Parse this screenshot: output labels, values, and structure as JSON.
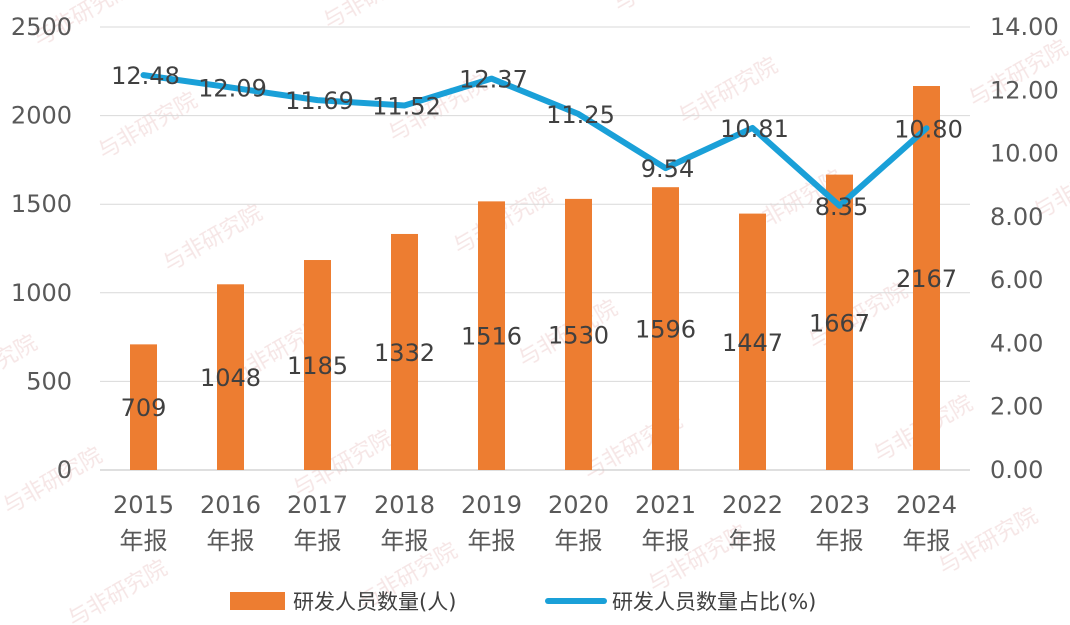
{
  "chart_data": {
    "type": "bar",
    "categories": [
      [
        "2015",
        "年报"
      ],
      [
        "2016",
        "年报"
      ],
      [
        "2017",
        "年报"
      ],
      [
        "2018",
        "年报"
      ],
      [
        "2019",
        "年报"
      ],
      [
        "2020",
        "年报"
      ],
      [
        "2021",
        "年报"
      ],
      [
        "2022",
        "年报"
      ],
      [
        "2023",
        "年报"
      ],
      [
        "2024",
        "年报"
      ]
    ],
    "series": [
      {
        "name": "研发人员数量(人)",
        "type": "bar",
        "axis": "left",
        "color": "#ED7D31",
        "values": [
          709,
          1048,
          1185,
          1332,
          1516,
          1530,
          1596,
          1447,
          1667,
          2167
        ],
        "labels": [
          "709",
          "1048",
          "1185",
          "1332",
          "1516",
          "1530",
          "1596",
          "1447",
          "1667",
          "2167"
        ]
      },
      {
        "name": "研发人员数量占比(%)",
        "type": "line",
        "axis": "right",
        "color": "#1AA0D8",
        "values": [
          12.48,
          12.09,
          11.69,
          11.52,
          12.37,
          11.25,
          9.54,
          10.81,
          8.35,
          10.8
        ],
        "labels": [
          "12.48",
          "12.09",
          "11.69",
          "11.52",
          "12.37",
          "11.25",
          "9.54",
          "10.81",
          "8.35",
          "10.80"
        ]
      }
    ],
    "y_left": {
      "min": 0,
      "max": 2500,
      "ticks": [
        0,
        500,
        1000,
        1500,
        2000,
        2500
      ],
      "tick_labels": [
        "0",
        "500",
        "1000",
        "1500",
        "2000",
        "2500"
      ]
    },
    "y_right": {
      "min": 0,
      "max": 14,
      "ticks": [
        0,
        2,
        4,
        6,
        8,
        10,
        12,
        14
      ],
      "tick_labels": [
        "0.00",
        "2.00",
        "4.00",
        "6.00",
        "8.00",
        "10.00",
        "12.00",
        "14.00"
      ]
    },
    "grid": true,
    "legend_position": "bottom",
    "title": "",
    "xlabel": "",
    "ylabel": ""
  },
  "watermark": "与非研究院"
}
